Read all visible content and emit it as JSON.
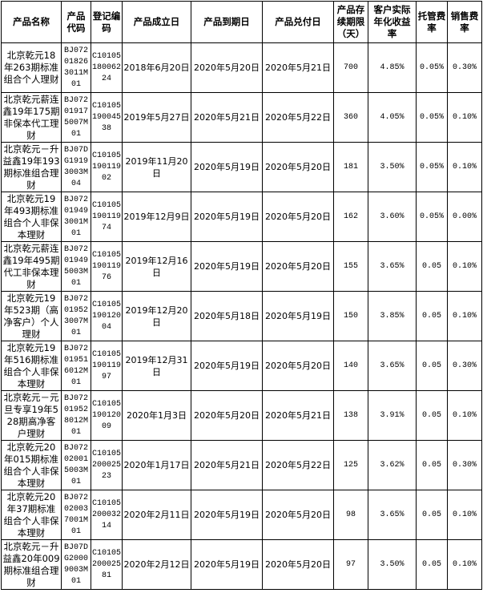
{
  "table": {
    "header": [
      "产品名称",
      "产品代码",
      "登记编码",
      "产品成立日",
      "产品到期日",
      "产品兑付日",
      "产品存续期限（天）",
      "客户实际年化收益率",
      "托管费率",
      "销售费率"
    ],
    "rows": [
      [
        "北京乾元18年263期标准组合个人理财",
        "BJ072018263011M01",
        "C1010518006224",
        "2018年6月20日",
        "2020年5月20日",
        "2020年5月21日",
        "700",
        "4.85%",
        "0.05%",
        "0.30%"
      ],
      [
        "北京乾元薪连鑫19年175期非保本代工理财",
        "BJ072019175007M01",
        "C1010519004538",
        "2019年5月27日",
        "2020年5月21日",
        "2020年5月22日",
        "360",
        "4.05%",
        "0.05%",
        "0.10%"
      ],
      [
        "北京乾元－升益鑫19年193期标准组合理财",
        "BJ07DG19193003M04",
        "C1010519011902",
        "2019年11月20日",
        "2020年5月19日",
        "2020年5月20日",
        "181",
        "3.50%",
        "0.05%",
        "0.10%"
      ],
      [
        "北京乾元19年493期标准组合个人非保本理财",
        "BJ072019493001M01",
        "C1010519011974",
        "2019年12月9日",
        "2020年5月19日",
        "2020年5月20日",
        "162",
        "3.60%",
        "0.05%",
        "0.00%"
      ],
      [
        "北京乾元薪连鑫19年495期代工非保本理财",
        "BJ072019495003M01",
        "C1010519011976",
        "2019年12月16日",
        "2020年5月19日",
        "2020年5月20日",
        "155",
        "3.65%",
        "0.05",
        "0.10%"
      ],
      [
        "北京乾元19年523期（高净客户）个人理财",
        "BJ072019523007M01",
        "C1010519012004",
        "2019年12月20日",
        "2020年5月18日",
        "2020年5月19日",
        "150",
        "3.85%",
        "0.05",
        "0.10%"
      ],
      [
        "北京乾元19年516期标准组合个人非保本理财",
        "BJ072019516012M01",
        "C1010519011997",
        "2019年12月31日",
        "2020年5月19日",
        "2020年5月20日",
        "140",
        "3.65%",
        "0.05",
        "0.30%"
      ],
      [
        "北京乾元－元旦专享19年528期高净客户理财",
        "BJ072019528012M01",
        "C1010519012009",
        "2020年1月3日",
        "2020年5月20日",
        "2020年5月21日",
        "138",
        "3.91%",
        "0.05",
        "0.10%"
      ],
      [
        "北京乾元20年015期标准组合个人非保本理财",
        "BJ072020015003M01",
        "C1010520002523",
        "2020年1月17日",
        "2020年5月21日",
        "2020年5月22日",
        "125",
        "3.62%",
        "0.05",
        "0.30%"
      ],
      [
        "北京乾元20年37期标准组合个人非保本理财",
        "BJ072020037001M01",
        "C1010520003214",
        "2020年2月11日",
        "2020年5月19日",
        "2020年5月20日",
        "98",
        "3.65%",
        "0.05",
        "0.10%"
      ],
      [
        "北京乾元－升益鑫20年009期标准组合理财",
        "BJ07DG20009003M01",
        "C1010520002581",
        "2020年2月12日",
        "2020年5月19日",
        "2020年5月20日",
        "97",
        "3.50%",
        "0.05",
        "0.10%"
      ]
    ]
  }
}
